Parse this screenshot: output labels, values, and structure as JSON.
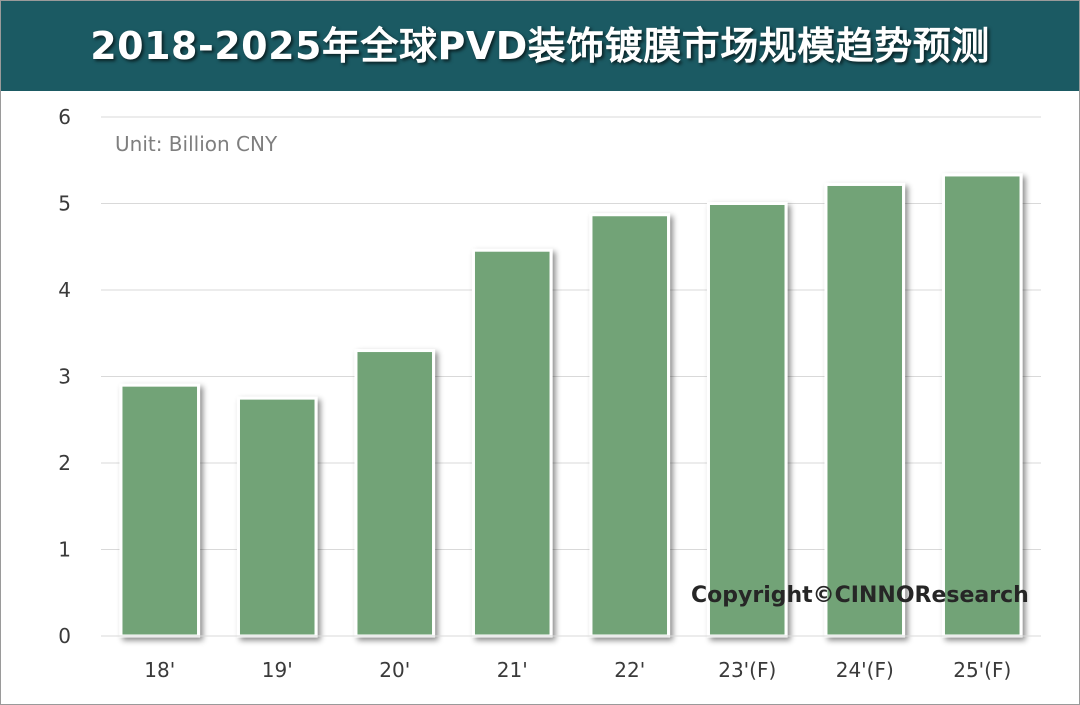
{
  "title": "2018-2025年全球PVD装饰镀膜市场规模趋势预测",
  "unit_label": "Unit: Billion CNY",
  "copyright": "Copyright©CINNOResearch",
  "colors": {
    "header": "#1b5a63",
    "bar": "#72a377",
    "bar_border": "#ffffff",
    "grid": "#d9d9d9"
  },
  "chart_data": {
    "type": "bar",
    "title": "2018-2025年全球PVD装饰镀膜市场规模趋势预测",
    "xlabel": "",
    "ylabel": "",
    "categories": [
      "18'",
      "19'",
      "20'",
      "21'",
      "22'",
      "23'(F)",
      "24'(F)",
      "25'(F)"
    ],
    "values": [
      2.9,
      2.75,
      3.3,
      4.46,
      4.87,
      5.0,
      5.22,
      5.33
    ],
    "ylim": [
      0,
      6
    ],
    "yticks": [
      "0",
      "1",
      "2",
      "3",
      "4",
      "5",
      "6"
    ],
    "grid": true,
    "legend": "none"
  }
}
